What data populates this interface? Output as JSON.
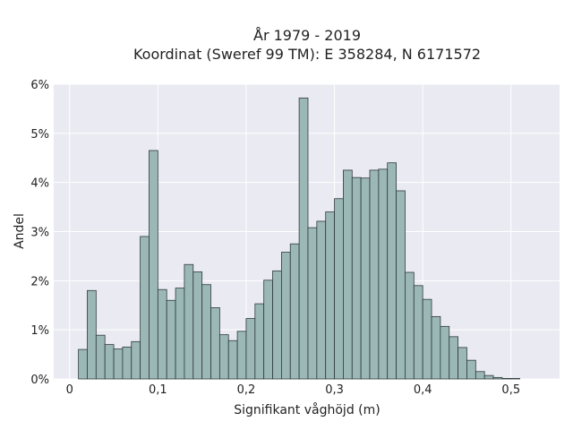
{
  "chart_data": {
    "type": "bar",
    "title_line1": "År 1979 - 2019",
    "title_line2": "Koordinat (Sweref 99 TM): E 358284, N 6171572",
    "xlabel": "Signifikant våghöjd (m)",
    "ylabel": "Andel",
    "xlim": [
      -0.018,
      0.555
    ],
    "ylim": [
      0,
      6
    ],
    "grid": true,
    "x_ticks": [
      {
        "value": 0,
        "label": "0"
      },
      {
        "value": 0.1,
        "label": "0,1"
      },
      {
        "value": 0.2,
        "label": "0,2"
      },
      {
        "value": 0.3,
        "label": "0,3"
      },
      {
        "value": 0.4,
        "label": "0,4"
      },
      {
        "value": 0.5,
        "label": "0,5"
      }
    ],
    "y_ticks": [
      {
        "value": 0,
        "label": "0%"
      },
      {
        "value": 1,
        "label": "1%"
      },
      {
        "value": 2,
        "label": "2%"
      },
      {
        "value": 3,
        "label": "3%"
      },
      {
        "value": 4,
        "label": "4%"
      },
      {
        "value": 5,
        "label": "5%"
      },
      {
        "value": 6,
        "label": "6%"
      }
    ],
    "bin_width": 0.01,
    "bin_start": 0.01,
    "values": [
      0.6,
      1.8,
      0.89,
      0.7,
      0.61,
      0.65,
      0.76,
      2.9,
      4.65,
      1.82,
      1.6,
      1.85,
      2.33,
      2.18,
      1.92,
      1.45,
      0.9,
      0.78,
      0.97,
      1.23,
      1.53,
      2.01,
      2.2,
      2.58,
      2.75,
      5.72,
      3.08,
      3.21,
      3.4,
      3.67,
      4.25,
      4.1,
      4.09,
      4.25,
      4.27,
      4.4,
      3.83,
      2.17,
      1.9,
      1.62,
      1.27,
      1.07,
      0.86,
      0.64,
      0.38,
      0.15,
      0.07,
      0.03,
      0.01,
      0.01
    ],
    "bar_color": "#9bb7b6",
    "bar_edge": "#2e3b3a",
    "plot_bg": "#eaeaf2",
    "grid_color": "#ffffff"
  }
}
